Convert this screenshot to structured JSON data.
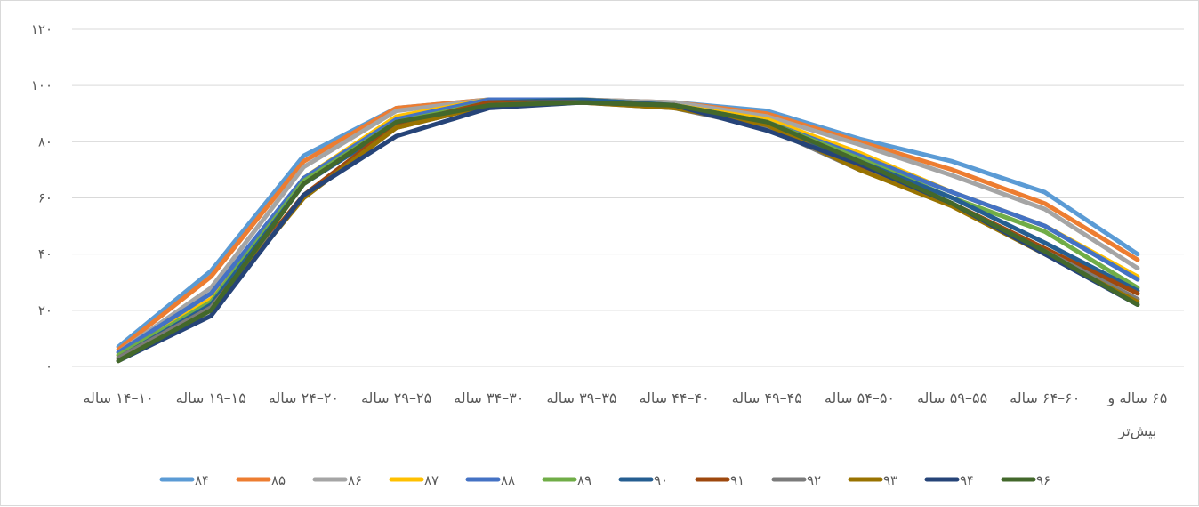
{
  "chart_data": {
    "type": "line",
    "title": "",
    "xlabel": "",
    "ylabel": "",
    "ylim": [
      0,
      120
    ],
    "yticks": [
      "۰",
      "۲۰",
      "۴۰",
      "۶۰",
      "۸۰",
      "۱۰۰",
      "۱۲۰"
    ],
    "grid": true,
    "legend_position": "bottom",
    "categories": [
      "۱۰–۱۴ ساله",
      "۱۵–۱۹ ساله",
      "۲۰–۲۴ ساله",
      "۲۵–۲۹ ساله",
      "۳۰–۳۴ ساله",
      "۳۵–۳۹ ساله",
      "۴۰–۴۴ ساله",
      "۴۵–۴۹ ساله",
      "۵۰–۵۴ ساله",
      "۵۵–۵۹ ساله",
      "۶۰–۶۴ ساله",
      "۶۵ ساله و بیش‌تر"
    ],
    "series": [
      {
        "name": "۸۴",
        "color": "#5b9bd5",
        "values": [
          7,
          34,
          75,
          92,
          95,
          95,
          94,
          91,
          81,
          73,
          62,
          40
        ]
      },
      {
        "name": "۸۵",
        "color": "#ed7d31",
        "values": [
          6,
          32,
          73,
          92,
          95,
          95,
          94,
          90,
          80,
          70,
          58,
          38
        ]
      },
      {
        "name": "۸۶",
        "color": "#a5a5a5",
        "values": [
          5,
          28,
          71,
          91,
          95,
          95,
          94,
          89,
          79,
          68,
          56,
          35
        ]
      },
      {
        "name": "۸۷",
        "color": "#ffc000",
        "values": [
          4,
          24,
          67,
          89,
          95,
          95,
          93,
          88,
          76,
          62,
          50,
          32
        ]
      },
      {
        "name": "۸۸",
        "color": "#4472c4",
        "values": [
          5,
          26,
          67,
          88,
          95,
          95,
          93,
          87,
          75,
          62,
          50,
          31
        ]
      },
      {
        "name": "۸۹",
        "color": "#70ad47",
        "values": [
          4,
          23,
          66,
          87,
          94,
          95,
          93,
          87,
          74,
          60,
          48,
          28
        ]
      },
      {
        "name": "۹۰",
        "color": "#255e91",
        "values": [
          3,
          22,
          65,
          86,
          94,
          95,
          93,
          86,
          73,
          60,
          44,
          27
        ]
      },
      {
        "name": "۹۱",
        "color": "#9e480e",
        "values": [
          3,
          21,
          61,
          86,
          94,
          94,
          93,
          85,
          71,
          58,
          42,
          26
        ]
      },
      {
        "name": "۹۲",
        "color": "#7b7b7b",
        "values": [
          3,
          21,
          60,
          85,
          93,
          94,
          92,
          85,
          70,
          58,
          41,
          24
        ]
      },
      {
        "name": "۹۳",
        "color": "#997300",
        "values": [
          2,
          20,
          60,
          85,
          93,
          94,
          92,
          86,
          70,
          57,
          40,
          23
        ]
      },
      {
        "name": "۹۴",
        "color": "#264478",
        "values": [
          2,
          18,
          61,
          82,
          92,
          94,
          93,
          84,
          72,
          58,
          40,
          22
        ]
      },
      {
        "name": "۹۶",
        "color": "#43682b",
        "values": [
          2,
          20,
          65,
          87,
          93,
          94,
          93,
          87,
          73,
          58,
          41,
          22
        ]
      }
    ]
  }
}
